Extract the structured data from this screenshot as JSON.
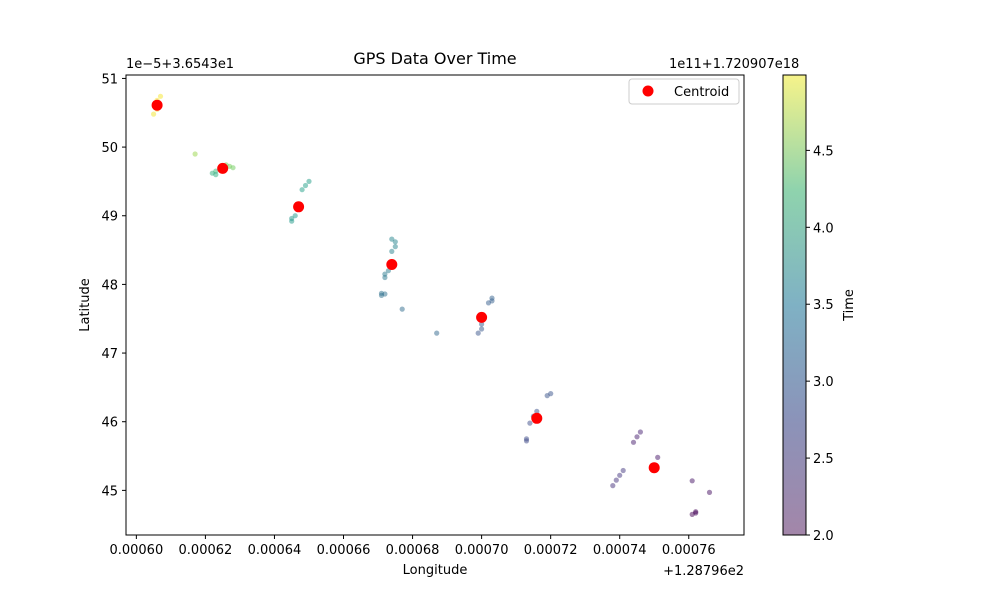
{
  "chart_data": {
    "type": "scatter",
    "title": "GPS Data Over Time",
    "xlabel": "Longitude",
    "ylabel": "Latitude",
    "x_offset_label": "+1.28796e2",
    "y_offset_label": "1e−5+3.6543e1",
    "x_ticks": [
      "0.00060",
      "0.00062",
      "0.00064",
      "0.00066",
      "0.00068",
      "0.00070",
      "0.00072",
      "0.00074",
      "0.00076"
    ],
    "y_ticks": [
      "45",
      "46",
      "47",
      "48",
      "49",
      "50",
      "51"
    ],
    "xlim": [
      0.000597,
      0.000776
    ],
    "ylim": [
      44.35,
      51.05
    ],
    "grid": false,
    "legend": {
      "placement": "upper-right",
      "entries": [
        "Centroid"
      ]
    },
    "colorbar": {
      "label": "Time",
      "offset_label": "1e11+1.720907e18",
      "range": [
        2.0,
        4.99
      ],
      "ticks": [
        "2.0",
        "2.5",
        "3.0",
        "3.5",
        "4.0",
        "4.5"
      ],
      "colormap": "viridis"
    },
    "series": [
      {
        "name": "Centroid",
        "color": "#ff0000",
        "points": [
          [
            0.000606,
            50.61
          ],
          [
            0.000625,
            49.69
          ],
          [
            0.000647,
            49.13
          ],
          [
            0.000674,
            48.29
          ],
          [
            0.0007,
            47.52
          ],
          [
            0.000716,
            46.05
          ],
          [
            0.00075,
            45.33
          ]
        ]
      },
      {
        "name": "points",
        "points": [
          [
            0.000606,
            50.68,
            4.98
          ],
          [
            0.000607,
            50.74,
            4.97
          ],
          [
            0.000606,
            50.58,
            4.96
          ],
          [
            0.000605,
            50.48,
            4.95
          ],
          [
            0.000606,
            50.55,
            4.94
          ],
          [
            0.000617,
            49.9,
            4.7
          ],
          [
            0.000626,
            49.74,
            4.6
          ],
          [
            0.000627,
            49.72,
            4.58
          ],
          [
            0.000628,
            49.7,
            4.56
          ],
          [
            0.000625,
            49.7,
            4.54
          ],
          [
            0.000623,
            49.65,
            4.35
          ],
          [
            0.000622,
            49.62,
            4.3
          ],
          [
            0.000623,
            49.6,
            4.28
          ],
          [
            0.000648,
            49.38,
            4.1
          ],
          [
            0.000649,
            49.44,
            4.1
          ],
          [
            0.00065,
            49.5,
            4.08
          ],
          [
            0.000645,
            48.92,
            4.0
          ],
          [
            0.000645,
            48.96,
            3.98
          ],
          [
            0.000646,
            49.0,
            3.96
          ],
          [
            0.000674,
            48.66,
            3.7
          ],
          [
            0.000675,
            48.62,
            3.68
          ],
          [
            0.000675,
            48.55,
            3.66
          ],
          [
            0.000674,
            48.48,
            3.64
          ],
          [
            0.000673,
            48.2,
            3.55
          ],
          [
            0.000672,
            48.15,
            3.52
          ],
          [
            0.000672,
            48.1,
            3.5
          ],
          [
            0.000671,
            47.87,
            3.4
          ],
          [
            0.000672,
            47.86,
            3.38
          ],
          [
            0.000671,
            47.84,
            3.36
          ],
          [
            0.000677,
            47.64,
            3.3
          ],
          [
            0.000687,
            47.29,
            3.25
          ],
          [
            0.000703,
            47.8,
            3.15
          ],
          [
            0.000703,
            47.76,
            3.12
          ],
          [
            0.000702,
            47.73,
            3.1
          ],
          [
            0.0007,
            47.42,
            3.05
          ],
          [
            0.0007,
            47.35,
            3.02
          ],
          [
            0.000699,
            47.29,
            3.0
          ],
          [
            0.00072,
            46.41,
            2.97
          ],
          [
            0.000719,
            46.38,
            2.95
          ],
          [
            0.000716,
            46.15,
            2.92
          ],
          [
            0.000715,
            46.08,
            2.9
          ],
          [
            0.000714,
            45.98,
            2.88
          ],
          [
            0.000713,
            45.75,
            2.85
          ],
          [
            0.000713,
            45.72,
            2.83
          ],
          [
            0.000741,
            45.29,
            2.6
          ],
          [
            0.00074,
            45.22,
            2.58
          ],
          [
            0.000739,
            45.15,
            2.55
          ],
          [
            0.000738,
            45.07,
            2.52
          ],
          [
            0.000746,
            45.85,
            2.35
          ],
          [
            0.000745,
            45.78,
            2.32
          ],
          [
            0.000744,
            45.7,
            2.3
          ],
          [
            0.000751,
            45.48,
            2.25
          ],
          [
            0.000761,
            45.14,
            2.2
          ],
          [
            0.000766,
            44.97,
            2.15
          ],
          [
            0.000762,
            44.69,
            2.05
          ],
          [
            0.000762,
            44.67,
            2.03
          ],
          [
            0.000761,
            44.65,
            2.0
          ]
        ]
      }
    ]
  }
}
